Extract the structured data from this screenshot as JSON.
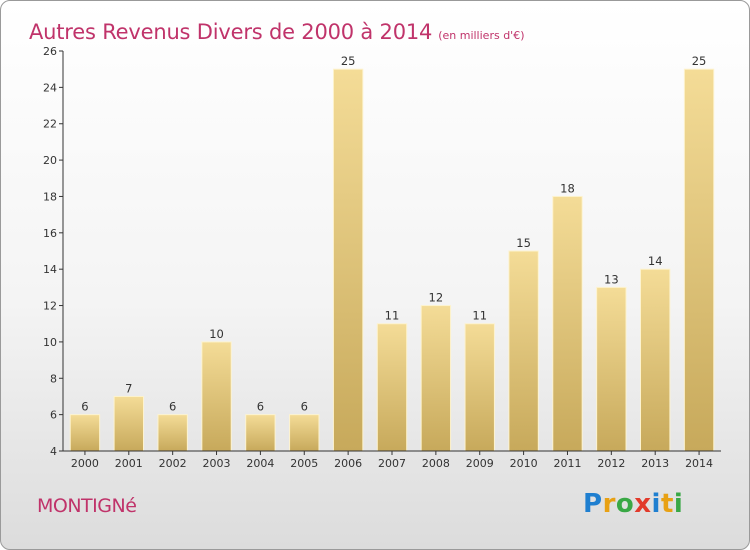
{
  "header": {
    "title": "Autres Revenus Divers de 2000 à 2014",
    "subtitle": "(en milliers d'€)"
  },
  "footer": {
    "place": "MONTIGNé",
    "logo_letters": [
      "P",
      "r",
      "o",
      "x",
      "i",
      "t",
      "i"
    ],
    "logo_colors": [
      "#1f7fd0",
      "#e8a114",
      "#39a845",
      "#e23a2b",
      "#1f7fd0",
      "#e8a114",
      "#39a845"
    ]
  },
  "colors": {
    "bar_light": "#f4dc97",
    "bar_dark": "#c7a95b",
    "bar_stroke": "#fdf3cf",
    "axis": "#333333",
    "title": "#c0336a"
  },
  "chart_data": {
    "type": "bar",
    "categories": [
      "2000",
      "2001",
      "2002",
      "2003",
      "2004",
      "2005",
      "2006",
      "2007",
      "2008",
      "2009",
      "2010",
      "2011",
      "2012",
      "2013",
      "2014"
    ],
    "values": [
      6,
      7,
      6,
      10,
      6,
      6,
      25,
      11,
      12,
      11,
      15,
      18,
      13,
      14,
      25
    ],
    "ylim": [
      4,
      26
    ],
    "yticks": [
      4,
      6,
      8,
      10,
      12,
      14,
      16,
      18,
      20,
      22,
      24,
      26
    ],
    "grid": false
  }
}
